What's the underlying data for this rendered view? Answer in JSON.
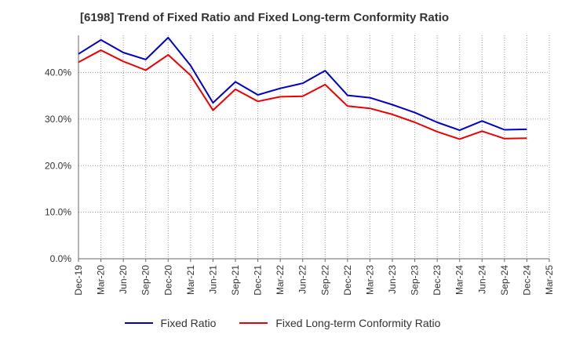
{
  "title": "[6198]  Trend of Fixed Ratio and Fixed Long-term Conformity Ratio",
  "chart_data": {
    "type": "line",
    "title": "[6198]  Trend of Fixed Ratio and Fixed Long-term Conformity Ratio",
    "xlabel": "",
    "ylabel": "",
    "ylim": [
      0,
      48
    ],
    "yticks": [
      "0.0%",
      "10.0%",
      "20.0%",
      "30.0%",
      "40.0%"
    ],
    "grid": true,
    "legend_position": "bottom",
    "categories": [
      "Dec-19",
      "Mar-20",
      "Jun-20",
      "Sep-20",
      "Dec-20",
      "Mar-21",
      "Jun-21",
      "Sep-21",
      "Dec-21",
      "Mar-22",
      "Jun-22",
      "Sep-22",
      "Dec-22",
      "Mar-23",
      "Jun-23",
      "Sep-23",
      "Dec-23",
      "Mar-24",
      "Jun-24",
      "Sep-24",
      "Dec-24",
      "Mar-25"
    ],
    "series": [
      {
        "name": "Fixed Ratio",
        "color": "#0000cc",
        "values": [
          44.0,
          47.0,
          44.3,
          42.8,
          47.5,
          41.5,
          33.5,
          38.0,
          35.2,
          36.6,
          37.7,
          40.4,
          35.1,
          34.6,
          33.1,
          31.4,
          29.3,
          27.6,
          29.6,
          27.7,
          27.8,
          null
        ]
      },
      {
        "name": "Fixed Long-term Conformity Ratio",
        "color": "#ee0000",
        "values": [
          42.2,
          44.8,
          42.4,
          40.5,
          43.8,
          39.4,
          31.9,
          36.4,
          33.8,
          34.8,
          34.9,
          37.4,
          32.8,
          32.3,
          31.0,
          29.3,
          27.3,
          25.7,
          27.4,
          25.8,
          25.9,
          null
        ]
      }
    ]
  }
}
